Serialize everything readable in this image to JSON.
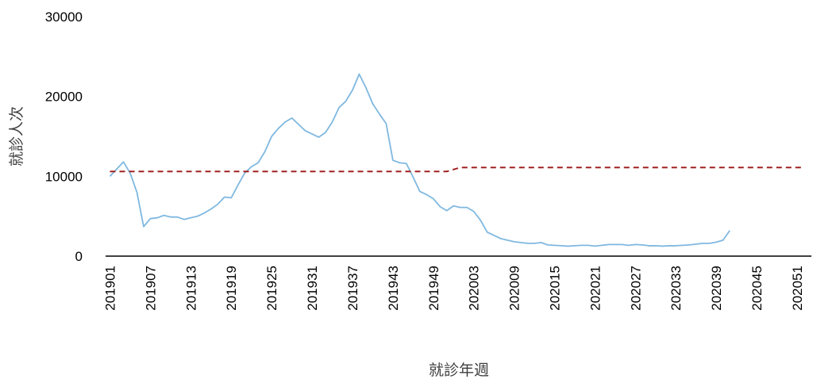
{
  "chart_data": {
    "type": "line",
    "title": "",
    "xlabel": "就診年週",
    "ylabel": "就診人次",
    "ylim": [
      0,
      30000
    ],
    "y_ticks": [
      0,
      10000,
      20000,
      30000
    ],
    "y_tick_labels": [
      "0",
      "10000",
      "20000",
      "30000"
    ],
    "x_tick_labels": [
      "201901",
      "201907",
      "201913",
      "201919",
      "201925",
      "201931",
      "201937",
      "201943",
      "201949",
      "202003",
      "202009",
      "202015",
      "202021",
      "202027",
      "202033",
      "202039",
      "202045",
      "202051"
    ],
    "grid": false,
    "legend": "none",
    "series": [
      {
        "style": "solid",
        "color": "#7fb8e0",
        "x": [
          "201901",
          "201902",
          "201903",
          "201904",
          "201905",
          "201906",
          "201907",
          "201908",
          "201909",
          "201910",
          "201911",
          "201912",
          "201913",
          "201914",
          "201915",
          "201916",
          "201917",
          "201918",
          "201919",
          "201920",
          "201921",
          "201922",
          "201923",
          "201924",
          "201925",
          "201926",
          "201927",
          "201928",
          "201929",
          "201930",
          "201931",
          "201932",
          "201933",
          "201934",
          "201935",
          "201936",
          "201937",
          "201938",
          "201939",
          "201940",
          "201941",
          "201942",
          "201943",
          "201944",
          "201945",
          "201946",
          "201947",
          "201948",
          "201949",
          "201950",
          "201951",
          "201952",
          "202001",
          "202002",
          "202003",
          "202004",
          "202005",
          "202006",
          "202007",
          "202008",
          "202009",
          "202010",
          "202011",
          "202012",
          "202013",
          "202014",
          "202015",
          "202016",
          "202017",
          "202018",
          "202019",
          "202020",
          "202021",
          "202022",
          "202023",
          "202024",
          "202025",
          "202026",
          "202027",
          "202028",
          "202029",
          "202030",
          "202031",
          "202032",
          "202033",
          "202034",
          "202035",
          "202036",
          "202037",
          "202038",
          "202039",
          "202040",
          "202041"
        ],
        "values": [
          10000,
          10900,
          11800,
          10400,
          8000,
          3700,
          4700,
          4800,
          5100,
          4900,
          4900,
          4600,
          4800,
          5000,
          5400,
          5900,
          6500,
          7400,
          7300,
          8900,
          10400,
          11200,
          11700,
          13100,
          15000,
          16000,
          16800,
          17300,
          16500,
          15700,
          15300,
          14900,
          15500,
          16800,
          18600,
          19400,
          20800,
          22800,
          21100,
          19100,
          17800,
          16600,
          12000,
          11700,
          11600,
          9900,
          8100,
          7700,
          7200,
          6200,
          5700,
          6300,
          6100,
          6100,
          5600,
          4500,
          3000,
          2600,
          2200,
          2000,
          1800,
          1700,
          1600,
          1600,
          1700,
          1400,
          1350,
          1300,
          1250,
          1300,
          1350,
          1350,
          1250,
          1350,
          1450,
          1450,
          1450,
          1350,
          1450,
          1400,
          1300,
          1300,
          1250,
          1300,
          1300,
          1350,
          1400,
          1500,
          1600,
          1600,
          1750,
          2000,
          3200
        ]
      },
      {
        "style": "dashed",
        "color": "#a02020",
        "segments": [
          {
            "from": "201901",
            "to": "201951",
            "value": 10600
          },
          {
            "from": "202001",
            "to": "202052",
            "value": 11100
          }
        ]
      }
    ]
  }
}
